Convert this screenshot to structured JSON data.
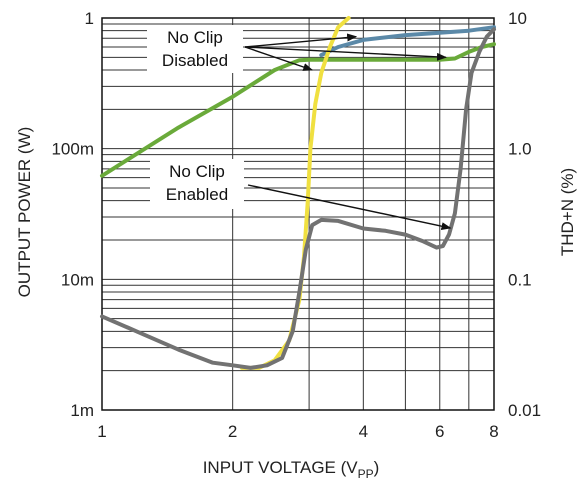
{
  "chart_data": {
    "type": "line",
    "title": "",
    "xlabel": "INPUT VOLTAGE",
    "xlabel_subscript": "PP",
    "xlabel_close": ")",
    "xlabel_open": " (V",
    "ylabel_left": "OUTPUT POWER (W)",
    "ylabel_right": "THD+N (%)",
    "x_scale": "log",
    "y_scale": "log",
    "xlim": [
      1,
      8
    ],
    "ylim_left": [
      0.001,
      1
    ],
    "ylim_right": [
      0.01,
      10
    ],
    "grid": true,
    "x_ticks": [
      {
        "value": 1,
        "label": "1"
      },
      {
        "value": 2,
        "label": "2"
      },
      {
        "value": 4,
        "label": "4"
      },
      {
        "value": 6,
        "label": "6"
      },
      {
        "value": 8,
        "label": "8"
      }
    ],
    "y_left_ticks": [
      {
        "value": 1,
        "label": "1"
      },
      {
        "value": 0.1,
        "label": "100m"
      },
      {
        "value": 0.01,
        "label": "10m"
      },
      {
        "value": 0.001,
        "label": "1m"
      }
    ],
    "y_right_ticks": [
      {
        "value": 10,
        "label": "10"
      },
      {
        "value": 1,
        "label": "1.0"
      },
      {
        "value": 0.1,
        "label": "0.1"
      },
      {
        "value": 0.01,
        "label": "0.01"
      }
    ],
    "series": [
      {
        "axis": "left",
        "color": "#6aaa3a",
        "points": [
          [
            1,
            0.062
          ],
          [
            1.5,
            0.145
          ],
          [
            2,
            0.25
          ],
          [
            2.5,
            0.4
          ],
          [
            2.85,
            0.475
          ],
          [
            3,
            0.48
          ],
          [
            4,
            0.48
          ],
          [
            5,
            0.48
          ],
          [
            6,
            0.48
          ],
          [
            6.5,
            0.49
          ],
          [
            7,
            0.55
          ],
          [
            7.5,
            0.6
          ],
          [
            8,
            0.63
          ]
        ]
      },
      {
        "axis": "left",
        "color": "#5b89a8",
        "points": [
          [
            3.2,
            0.52
          ],
          [
            3.5,
            0.6
          ],
          [
            4,
            0.68
          ],
          [
            5,
            0.74
          ],
          [
            6,
            0.77
          ],
          [
            7,
            0.8
          ],
          [
            8,
            0.85
          ]
        ]
      },
      {
        "axis": "right",
        "color": "#f0e040",
        "points": [
          [
            2.1,
            0.021
          ],
          [
            2.3,
            0.021
          ],
          [
            2.5,
            0.024
          ],
          [
            2.7,
            0.034
          ],
          [
            2.85,
            0.07
          ],
          [
            2.92,
            0.15
          ],
          [
            2.98,
            0.4
          ],
          [
            3.02,
            1.0
          ],
          [
            3.1,
            2.2
          ],
          [
            3.2,
            3.8
          ],
          [
            3.35,
            6
          ],
          [
            3.5,
            8.5
          ],
          [
            3.7,
            10
          ]
        ]
      },
      {
        "axis": "right",
        "color": "#727272",
        "points": [
          [
            1,
            0.052
          ],
          [
            1.2,
            0.04
          ],
          [
            1.5,
            0.029
          ],
          [
            1.8,
            0.023
          ],
          [
            2,
            0.022
          ],
          [
            2.2,
            0.021
          ],
          [
            2.4,
            0.022
          ],
          [
            2.6,
            0.025
          ],
          [
            2.75,
            0.04
          ],
          [
            2.85,
            0.08
          ],
          [
            2.95,
            0.17
          ],
          [
            3.05,
            0.26
          ],
          [
            3.2,
            0.285
          ],
          [
            3.5,
            0.28
          ],
          [
            4,
            0.245
          ],
          [
            4.5,
            0.235
          ],
          [
            5,
            0.22
          ],
          [
            5.5,
            0.195
          ],
          [
            5.9,
            0.175
          ],
          [
            6.1,
            0.18
          ],
          [
            6.3,
            0.22
          ],
          [
            6.5,
            0.32
          ],
          [
            6.7,
            0.7
          ],
          [
            6.9,
            2.0
          ],
          [
            7.1,
            3.8
          ],
          [
            7.4,
            5.5
          ],
          [
            7.7,
            7.2
          ],
          [
            8,
            8.2
          ]
        ]
      }
    ],
    "annotations": [
      {
        "lines": [
          "No Clip",
          "Disabled"
        ],
        "targets": [
          [
            3.05,
            0.4,
            "left"
          ],
          [
            3.85,
            0.72,
            "left"
          ],
          [
            6.2,
            0.5,
            "left"
          ]
        ]
      },
      {
        "lines": [
          "No Clip",
          "Enabled"
        ],
        "targets": [
          [
            6.35,
            0.0247,
            "left"
          ]
        ]
      }
    ]
  }
}
